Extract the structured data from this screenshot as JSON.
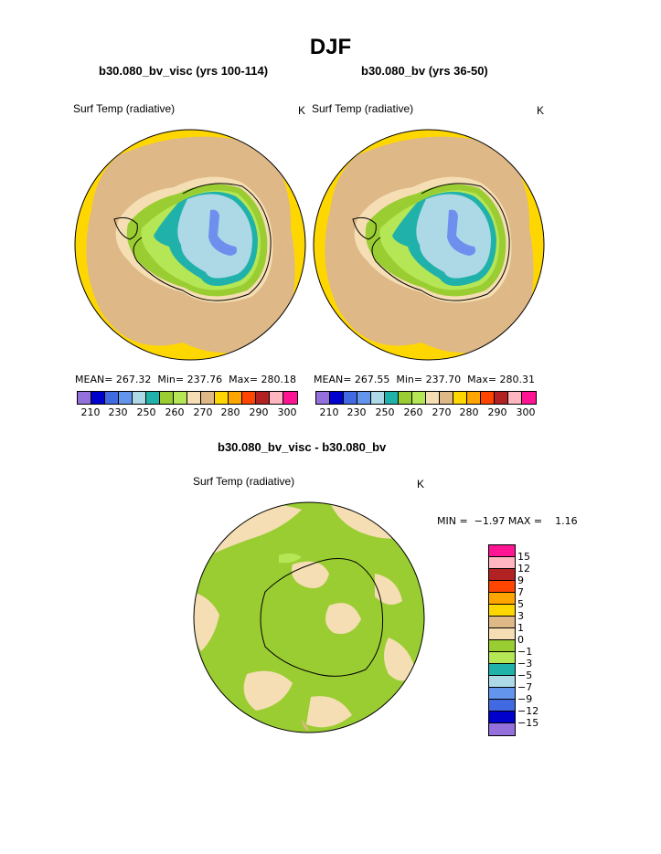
{
  "figure": {
    "season": "DJF"
  },
  "panels": [
    {
      "title": "b30.080_bv_visc (yrs 100-114)",
      "variable": "Surf Temp (radiative)",
      "units": "K",
      "stats": "MEAN= 267.32  Min= 237.76  Max= 280.18"
    },
    {
      "title": "b30.080_bv (yrs 36-50)",
      "variable": "Surf Temp (radiative)",
      "units": "K",
      "stats": "MEAN= 267.55  Min= 237.70  Max= 280.31"
    }
  ],
  "diff_panel": {
    "title": "b30.080_bv_visc - b30.080_bv",
    "variable": "Surf Temp (radiative)",
    "units": "K",
    "stats": "MIN =  −1.97 MAX =    1.16"
  },
  "colorbar_abs": {
    "colors": [
      "#9370db",
      "#0000cd",
      "#4169e1",
      "#6495ed",
      "#add8e6",
      "#20b2aa",
      "#9acd32",
      "#b5e655",
      "#f5deb3",
      "#deb887",
      "#ffd700",
      "#ffa500",
      "#ff4500",
      "#b22222",
      "#ffb6c1",
      "#ff1493"
    ],
    "labels": [
      "210",
      "230",
      "250",
      "260",
      "270",
      "280",
      "290",
      "300"
    ]
  },
  "colorbar_diff": {
    "colors": [
      "#ff1493",
      "#ffb6c1",
      "#b22222",
      "#ff4500",
      "#ffa500",
      "#ffd700",
      "#deb887",
      "#f5deb3",
      "#9acd32",
      "#b5e655",
      "#20b2aa",
      "#add8e6",
      "#6495ed",
      "#4169e1",
      "#0000cd",
      "#9370db"
    ],
    "labels": [
      "15",
      "12",
      "9",
      "7",
      "5",
      "3",
      "1",
      "0",
      "−1",
      "−3",
      "−5",
      "−7",
      "−9",
      "−12",
      "−15"
    ]
  }
}
